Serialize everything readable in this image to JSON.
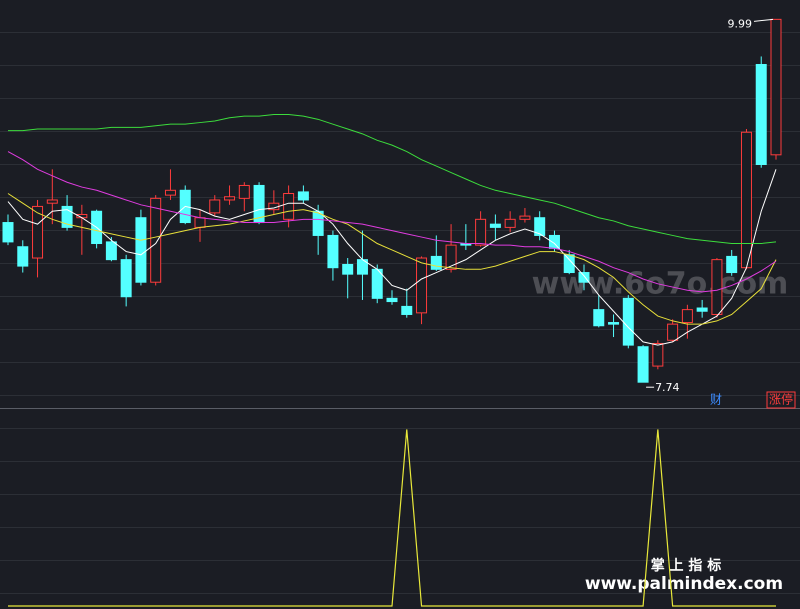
{
  "chart_data": [
    {
      "type": "candlestick",
      "ylim": [
        7.58,
        10.11
      ],
      "up_color": "#ff3c3c",
      "down_color": "#54ffff",
      "open": [
        8.73,
        8.58,
        8.51,
        8.85,
        8.83,
        8.76,
        8.8,
        8.61,
        8.5,
        8.76,
        8.36,
        8.9,
        8.93,
        8.7,
        8.79,
        8.87,
        8.88,
        8.96,
        8.81,
        8.75,
        8.92,
        8.8,
        8.65,
        8.47,
        8.5,
        8.44,
        8.26,
        8.21,
        8.17,
        8.52,
        8.44,
        8.6,
        8.59,
        8.72,
        8.7,
        8.75,
        8.76,
        8.65,
        8.53,
        8.42,
        8.19,
        8.11,
        8.26,
        7.96,
        7.84,
        8.0,
        8.11,
        8.2,
        8.16,
        8.52,
        8.45,
        9.71,
        9.15
      ],
      "high": [
        8.78,
        8.62,
        8.87,
        9.06,
        8.9,
        8.84,
        8.81,
        8.64,
        8.53,
        8.81,
        8.9,
        9.06,
        8.96,
        8.81,
        8.9,
        8.96,
        8.98,
        8.98,
        8.93,
        8.96,
        8.96,
        8.84,
        8.68,
        8.51,
        8.68,
        8.47,
        8.31,
        8.32,
        8.52,
        8.65,
        8.72,
        8.72,
        8.8,
        8.78,
        8.8,
        8.82,
        8.8,
        8.68,
        8.56,
        8.47,
        8.28,
        8.16,
        8.28,
        7.97,
        8.0,
        8.13,
        8.22,
        8.25,
        8.51,
        8.56,
        9.31,
        9.76,
        9.99
      ],
      "low": [
        8.59,
        8.42,
        8.39,
        8.72,
        8.68,
        8.53,
        8.57,
        8.49,
        8.21,
        8.34,
        8.34,
        8.87,
        8.72,
        8.61,
        8.77,
        8.84,
        8.8,
        8.72,
        8.78,
        8.7,
        8.85,
        8.53,
        8.37,
        8.26,
        8.25,
        8.23,
        8.22,
        8.14,
        8.1,
        8.43,
        8.42,
        8.56,
        8.58,
        8.62,
        8.67,
        8.73,
        8.62,
        8.55,
        8.41,
        8.31,
        8.08,
        8.02,
        7.95,
        7.74,
        7.82,
        7.99,
        8.01,
        8.14,
        8.14,
        8.4,
        8.44,
        9.07,
        9.12
      ],
      "close": [
        8.61,
        8.46,
        8.83,
        8.87,
        8.7,
        8.78,
        8.6,
        8.5,
        8.27,
        8.36,
        8.88,
        8.93,
        8.73,
        8.76,
        8.87,
        8.89,
        8.96,
        8.73,
        8.85,
        8.91,
        8.87,
        8.65,
        8.45,
        8.41,
        8.41,
        8.26,
        8.24,
        8.16,
        8.51,
        8.44,
        8.59,
        8.59,
        8.75,
        8.7,
        8.75,
        8.77,
        8.65,
        8.57,
        8.42,
        8.36,
        8.09,
        8.1,
        7.97,
        7.74,
        7.98,
        8.1,
        8.19,
        8.18,
        8.5,
        8.42,
        9.29,
        9.09,
        9.99
      ],
      "series": [
        {
          "color": "#ffffff",
          "values": [
            8.86,
            8.75,
            8.72,
            8.8,
            8.81,
            8.76,
            8.7,
            8.62,
            8.55,
            8.53,
            8.6,
            8.75,
            8.83,
            8.81,
            8.77,
            8.75,
            8.78,
            8.81,
            8.82,
            8.85,
            8.85,
            8.8,
            8.72,
            8.6,
            8.5,
            8.44,
            8.34,
            8.31,
            8.38,
            8.42,
            8.46,
            8.5,
            8.56,
            8.62,
            8.66,
            8.69,
            8.66,
            8.6,
            8.5,
            8.4,
            8.28,
            8.18,
            8.08,
            7.99,
            7.97,
            7.99,
            8.05,
            8.1,
            8.15,
            8.26,
            8.45,
            8.8,
            9.06
          ]
        },
        {
          "color": "#e8e03a",
          "values": [
            8.91,
            8.85,
            8.79,
            8.75,
            8.72,
            8.7,
            8.68,
            8.66,
            8.64,
            8.62,
            8.64,
            8.66,
            8.68,
            8.7,
            8.71,
            8.72,
            8.74,
            8.76,
            8.78,
            8.8,
            8.81,
            8.79,
            8.75,
            8.72,
            8.66,
            8.6,
            8.56,
            8.52,
            8.48,
            8.46,
            8.45,
            8.44,
            8.44,
            8.46,
            8.49,
            8.52,
            8.55,
            8.55,
            8.53,
            8.5,
            8.45,
            8.39,
            8.3,
            8.22,
            8.15,
            8.12,
            8.1,
            8.1,
            8.12,
            8.16,
            8.24,
            8.32,
            8.5
          ]
        },
        {
          "color": "#e03ce0",
          "values": [
            9.17,
            9.12,
            9.06,
            9.02,
            8.98,
            8.95,
            8.93,
            8.9,
            8.87,
            8.84,
            8.82,
            8.8,
            8.78,
            8.76,
            8.75,
            8.74,
            8.73,
            8.73,
            8.73,
            8.74,
            8.75,
            8.75,
            8.74,
            8.73,
            8.72,
            8.7,
            8.68,
            8.66,
            8.64,
            8.62,
            8.61,
            8.6,
            8.6,
            8.59,
            8.59,
            8.58,
            8.58,
            8.57,
            8.55,
            8.52,
            8.49,
            8.45,
            8.42,
            8.38,
            8.35,
            8.33,
            8.31,
            8.3,
            8.31,
            8.34,
            8.38,
            8.43,
            8.49
          ]
        },
        {
          "color": "#3cdc3c",
          "values": [
            9.3,
            9.3,
            9.31,
            9.31,
            9.31,
            9.31,
            9.31,
            9.32,
            9.32,
            9.32,
            9.33,
            9.34,
            9.34,
            9.35,
            9.36,
            9.38,
            9.39,
            9.39,
            9.4,
            9.4,
            9.39,
            9.37,
            9.34,
            9.31,
            9.28,
            9.24,
            9.21,
            9.17,
            9.12,
            9.08,
            9.04,
            9.0,
            8.96,
            8.93,
            8.91,
            8.89,
            8.87,
            8.85,
            8.82,
            8.79,
            8.76,
            8.74,
            8.71,
            8.69,
            8.67,
            8.65,
            8.63,
            8.62,
            8.61,
            8.6,
            8.6,
            8.6,
            8.61
          ]
        }
      ],
      "annotations": {
        "high": "9.99",
        "low": "7.74"
      },
      "badges": [
        "财",
        "涨停"
      ]
    },
    {
      "type": "line",
      "ylim": [
        0,
        1.11
      ],
      "series": [
        {
          "color": "#e8e83a",
          "values": [
            0,
            0,
            0,
            0,
            0,
            0,
            0,
            0,
            0,
            0,
            0,
            0,
            0,
            0,
            0,
            0,
            0,
            0,
            0,
            0,
            0,
            0,
            0,
            0,
            0,
            0,
            0,
            1,
            0,
            0,
            0,
            0,
            0,
            0,
            0,
            0,
            0,
            0,
            0,
            0,
            0,
            0,
            0,
            0,
            1,
            0,
            0,
            0,
            0,
            0,
            0,
            0,
            0
          ]
        }
      ]
    }
  ],
  "watermarks": {
    "site": "www.6o7o.com",
    "brand": "掌 上 指 标",
    "url": "www.palmindex.com"
  }
}
